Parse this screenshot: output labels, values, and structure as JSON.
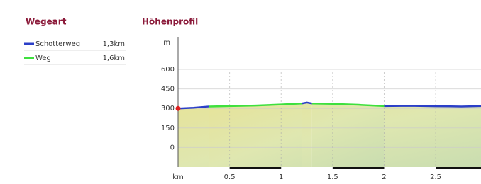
{
  "legend": {
    "title": "Wegeart"
  },
  "chart_data": {
    "type": "line",
    "title": "Höhenprofil",
    "y_label": "m",
    "x_label": "km",
    "x": [
      0,
      0.15,
      0.3,
      0.5,
      0.75,
      1,
      1.2,
      1.25,
      1.3,
      1.5,
      1.75,
      2,
      2.25,
      2.5,
      2.75,
      2.94
    ],
    "series": [
      {
        "name": "Schotterweg",
        "length": "1,3km",
        "color": "#2b3fc8",
        "values": [
          300,
          305,
          315,
          null,
          null,
          null,
          338,
          345,
          338,
          null,
          null,
          318,
          320,
          317,
          315,
          318
        ]
      },
      {
        "name": "Weg",
        "length": "1,6km",
        "color": "#3ee03e",
        "values": [
          null,
          null,
          315,
          318,
          322,
          330,
          338,
          null,
          338,
          335,
          328,
          318,
          null,
          null,
          null,
          null
        ]
      }
    ],
    "xlim": [
      0,
      2.94
    ],
    "ylim": [
      -150,
      850
    ],
    "xticks": [
      0.5,
      1,
      1.5,
      2,
      2.5
    ],
    "yticks": [
      0,
      150,
      300,
      450,
      600
    ],
    "grid": true
  }
}
